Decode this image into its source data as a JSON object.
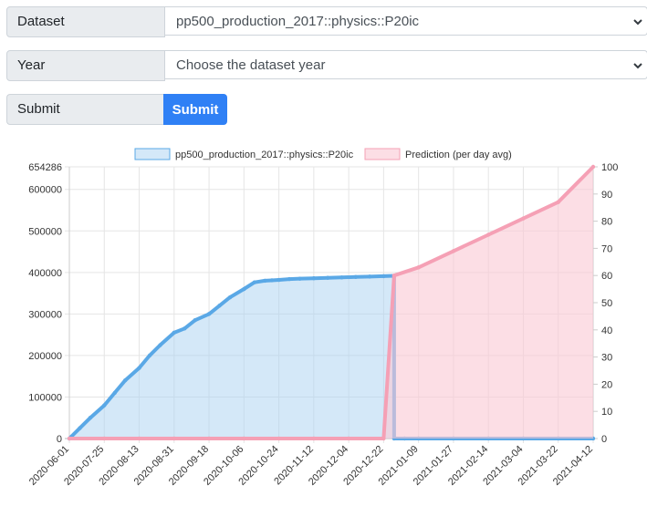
{
  "form": {
    "dataset_label": "Dataset",
    "dataset_value": "pp500_production_2017::physics::P20ic",
    "year_label": "Year",
    "year_value": "Choose the dataset year",
    "submit_label": "Submit",
    "submit_button": "Submit"
  },
  "chart_data": {
    "type": "line",
    "title": "",
    "legend_position": "top",
    "grid": true,
    "x_tick_labels": [
      "2020-06-01",
      "2020-07-25",
      "2020-08-13",
      "2020-08-31",
      "2020-09-18",
      "2020-10-06",
      "2020-10-24",
      "2020-11-12",
      "2020-12-04",
      "2020-12-22",
      "2021-01-09",
      "2021-01-27",
      "2021-02-14",
      "2021-03-04",
      "2021-03-22",
      "2021-04-12"
    ],
    "y_left": {
      "max": 654286,
      "ticks": [
        0,
        100000,
        200000,
        300000,
        400000,
        500000,
        600000,
        654286
      ]
    },
    "y_right": {
      "min": 0,
      "max": 100,
      "ticks": [
        0,
        10,
        20,
        30,
        40,
        50,
        60,
        70,
        80,
        90,
        100
      ]
    },
    "series": [
      {
        "name": "pp500_production_2017::physics::P20ic",
        "axis": "left",
        "color": "#5aa8e6",
        "fill": "rgba(170,210,242,0.5)",
        "x": [
          0,
          0.3,
          0.6,
          1,
          1.3,
          1.6,
          2,
          2.3,
          2.6,
          3,
          3.3,
          3.6,
          4,
          4.3,
          4.6,
          5,
          5.3,
          5.6,
          5.8,
          6,
          6.3,
          6.6,
          7,
          7.4,
          7.8,
          8.2,
          8.6,
          9,
          9.3,
          9.3,
          9.6,
          10,
          11,
          12,
          13,
          14,
          15
        ],
        "y": [
          0,
          25000,
          50000,
          80000,
          110000,
          140000,
          170000,
          200000,
          225000,
          255000,
          265000,
          285000,
          300000,
          320000,
          340000,
          360000,
          376000,
          380000,
          381000,
          382000,
          384000,
          385000,
          386000,
          387000,
          388000,
          389000,
          390000,
          391000,
          392000,
          0,
          0,
          0,
          0,
          0,
          0,
          0,
          0
        ]
      },
      {
        "name": "Prediction (per day avg)",
        "axis": "right",
        "color": "#f5a0b5",
        "fill": "rgba(250,200,212,0.6)",
        "x": [
          0,
          1,
          2,
          3,
          4,
          5,
          6,
          7,
          8,
          9,
          9.3,
          10,
          11,
          12,
          13,
          14,
          15
        ],
        "y": [
          0,
          0,
          0,
          0,
          0,
          0,
          0,
          0,
          0,
          0,
          60,
          63,
          69,
          75,
          81,
          87,
          100
        ]
      }
    ]
  }
}
